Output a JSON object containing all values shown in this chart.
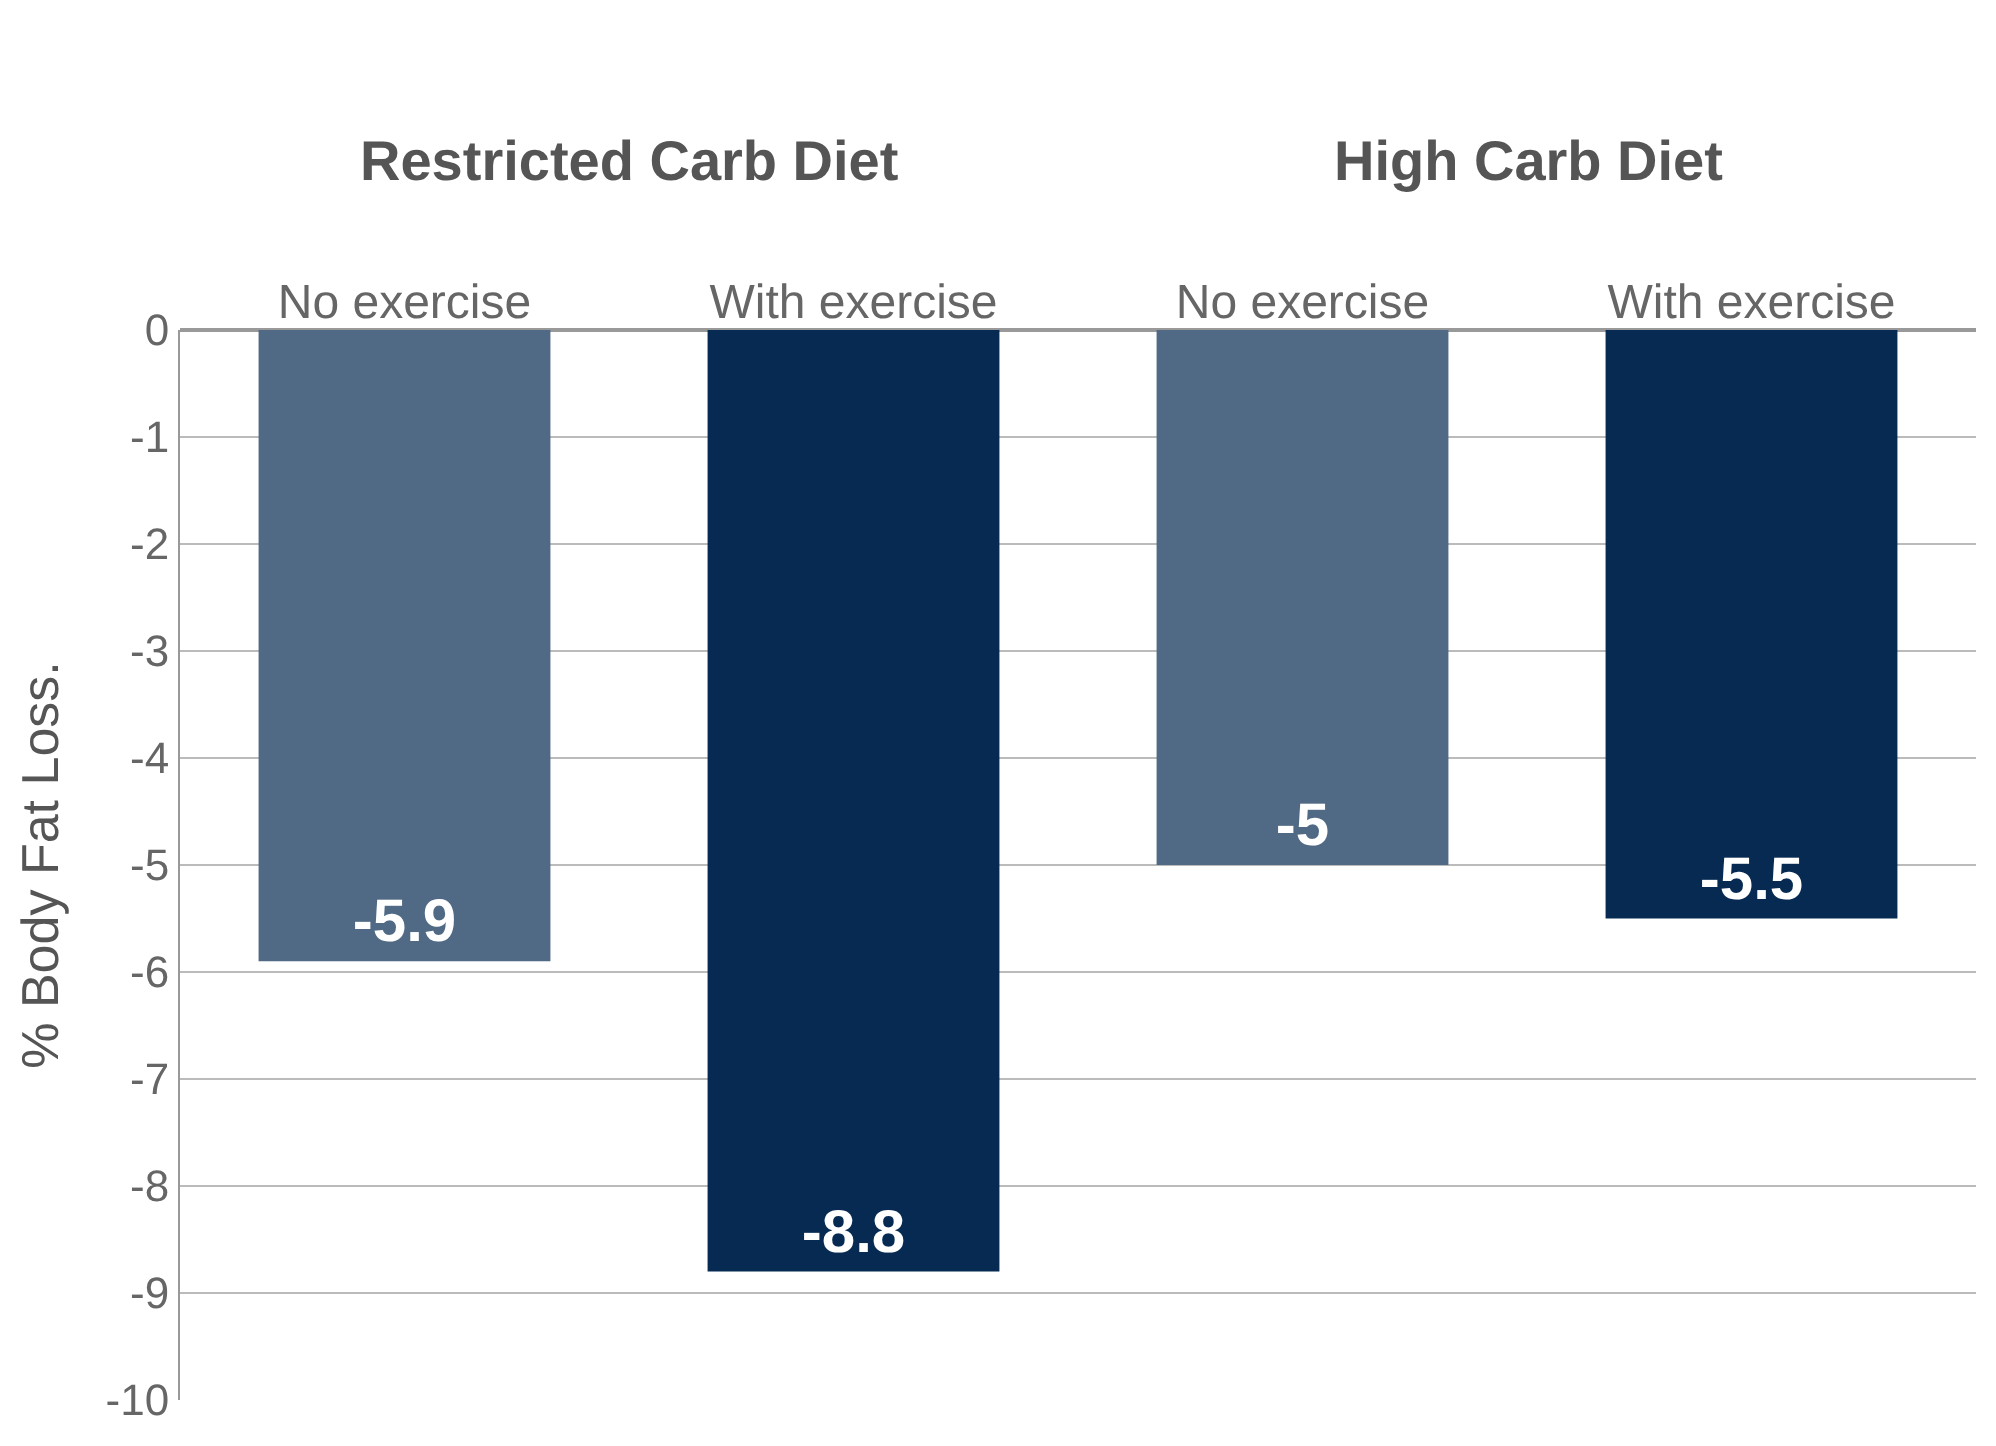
{
  "chart_data": {
    "type": "bar",
    "ylabel": "% Body Fat Loss.",
    "categories": [
      "No exercise",
      "With exercise",
      "No exercise",
      "With exercise"
    ],
    "values": [
      -5.9,
      -8.8,
      -5,
      -5.5
    ],
    "colors": [
      "#506985",
      "#062a52",
      "#506985",
      "#062a52"
    ],
    "ylim": [
      -10,
      0
    ],
    "yticks": [
      -10,
      -9,
      -8,
      -7,
      -6,
      -5,
      -4,
      -3,
      -2,
      -1,
      0
    ],
    "grid": "y",
    "data_labels": true,
    "annotations": [
      "Restricted Carb Diet",
      "High Carb Diet"
    ]
  }
}
